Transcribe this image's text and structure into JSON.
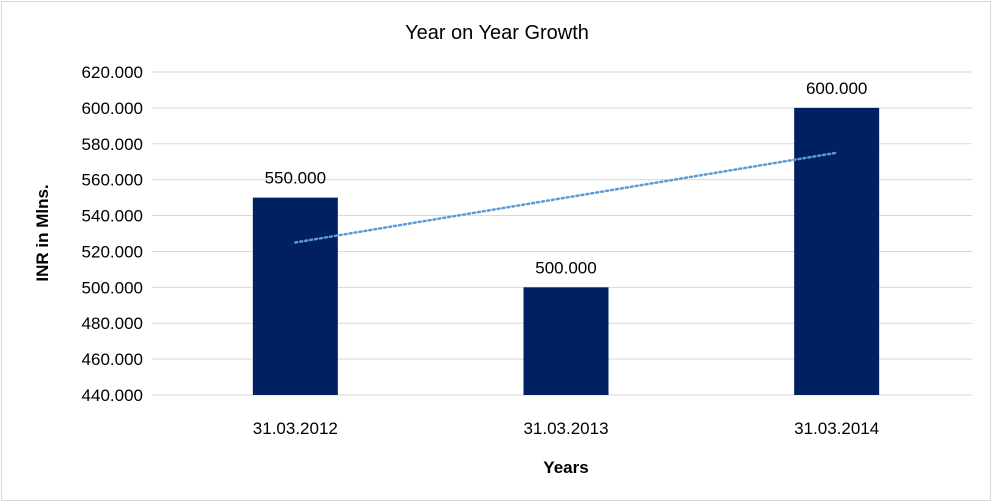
{
  "chart_data": {
    "type": "bar",
    "title": "Year on Year Growth",
    "xlabel": "Years",
    "ylabel": "INR in Mlns.",
    "categories": [
      "31.03.2012",
      "31.03.2013",
      "31.03.2014"
    ],
    "values": [
      550,
      500,
      600
    ],
    "data_labels": [
      "550.000",
      "500.000",
      "600.000"
    ],
    "ylim": [
      440,
      620
    ],
    "yticks": [
      440,
      460,
      480,
      500,
      520,
      540,
      560,
      580,
      600,
      620
    ],
    "ytick_labels": [
      "440.000",
      "460.000",
      "480.000",
      "500.000",
      "520.000",
      "540.000",
      "560.000",
      "580.000",
      "600.000",
      "620.000"
    ],
    "grid": true,
    "trendline": {
      "type": "linear",
      "style": "dotted",
      "values": [
        525,
        550,
        575
      ]
    },
    "colors": {
      "bar": "#002060",
      "trendline": "#5B9BD5",
      "grid": "#d9d9d9"
    }
  }
}
